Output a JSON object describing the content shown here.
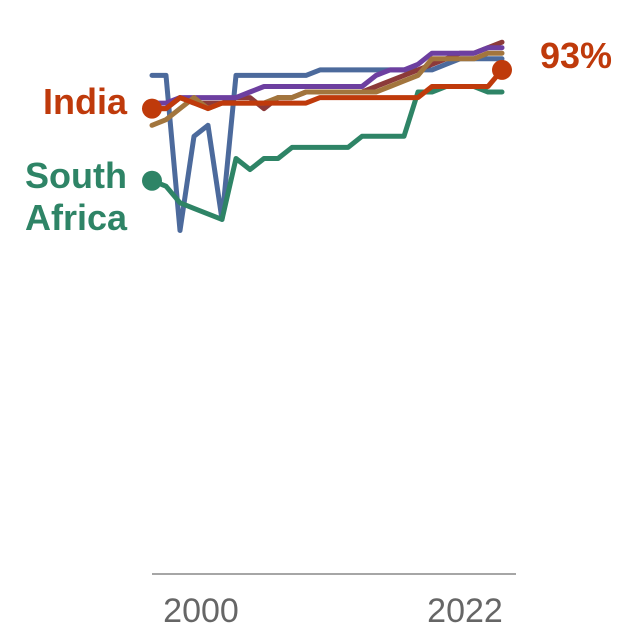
{
  "chart_data": {
    "type": "line",
    "title": "",
    "xlabel": "",
    "ylabel": "",
    "xlim": [
      1997,
      2023
    ],
    "ylim": [
      0,
      100
    ],
    "x_ticks": [
      2000,
      2022
    ],
    "x_tick_labels": [
      "2000",
      "2022"
    ],
    "grid": false,
    "legend": "none",
    "series": [
      {
        "key": "s1",
        "color": "#4c6a9c",
        "values": [
          [
            1997,
            90
          ],
          [
            1998,
            90
          ],
          [
            1999,
            62
          ],
          [
            2000,
            79
          ],
          [
            2001,
            81
          ],
          [
            2002,
            64
          ],
          [
            2003,
            90
          ],
          [
            2004,
            90
          ],
          [
            2005,
            90
          ],
          [
            2006,
            90
          ],
          [
            2007,
            90
          ],
          [
            2008,
            90
          ],
          [
            2009,
            91
          ],
          [
            2010,
            91
          ],
          [
            2011,
            91
          ],
          [
            2012,
            91
          ],
          [
            2013,
            91
          ],
          [
            2014,
            91
          ],
          [
            2015,
            91
          ],
          [
            2016,
            91
          ],
          [
            2017,
            91
          ],
          [
            2018,
            92
          ],
          [
            2019,
            93
          ],
          [
            2020,
            93
          ],
          [
            2021,
            93
          ],
          [
            2022,
            93
          ]
        ]
      },
      {
        "key": "s2",
        "color": "#8c3a3a",
        "values": [
          [
            1997,
            84
          ],
          [
            1998,
            84
          ],
          [
            1999,
            86
          ],
          [
            2000,
            85
          ],
          [
            2001,
            85
          ],
          [
            2002,
            85
          ],
          [
            2003,
            86
          ],
          [
            2004,
            86
          ],
          [
            2005,
            84
          ],
          [
            2006,
            86
          ],
          [
            2007,
            86
          ],
          [
            2008,
            87
          ],
          [
            2009,
            87
          ],
          [
            2010,
            87
          ],
          [
            2011,
            87
          ],
          [
            2012,
            87
          ],
          [
            2013,
            88
          ],
          [
            2014,
            89
          ],
          [
            2015,
            90
          ],
          [
            2016,
            91
          ],
          [
            2017,
            92
          ],
          [
            2018,
            93
          ],
          [
            2019,
            94
          ],
          [
            2020,
            94
          ],
          [
            2021,
            95
          ],
          [
            2022,
            96
          ]
        ]
      },
      {
        "key": "s3",
        "color": "#6d3fa0",
        "values": [
          [
            1997,
            85
          ],
          [
            1998,
            85
          ],
          [
            1999,
            86
          ],
          [
            2000,
            86
          ],
          [
            2001,
            86
          ],
          [
            2002,
            86
          ],
          [
            2003,
            86
          ],
          [
            2004,
            87
          ],
          [
            2005,
            88
          ],
          [
            2006,
            88
          ],
          [
            2007,
            88
          ],
          [
            2008,
            88
          ],
          [
            2009,
            88
          ],
          [
            2010,
            88
          ],
          [
            2011,
            88
          ],
          [
            2012,
            88
          ],
          [
            2013,
            90
          ],
          [
            2014,
            91
          ],
          [
            2015,
            91
          ],
          [
            2016,
            92
          ],
          [
            2017,
            94
          ],
          [
            2018,
            94
          ],
          [
            2019,
            94
          ],
          [
            2020,
            94
          ],
          [
            2021,
            95
          ],
          [
            2022,
            95
          ]
        ]
      },
      {
        "key": "s4",
        "color": "#a2753d",
        "values": [
          [
            1997,
            81
          ],
          [
            1998,
            82
          ],
          [
            1999,
            84
          ],
          [
            2000,
            86
          ],
          [
            2001,
            84
          ],
          [
            2002,
            85
          ],
          [
            2003,
            85
          ],
          [
            2004,
            85
          ],
          [
            2005,
            85
          ],
          [
            2006,
            86
          ],
          [
            2007,
            86
          ],
          [
            2008,
            87
          ],
          [
            2009,
            87
          ],
          [
            2010,
            87
          ],
          [
            2011,
            87
          ],
          [
            2012,
            87
          ],
          [
            2013,
            87
          ],
          [
            2014,
            88
          ],
          [
            2015,
            89
          ],
          [
            2016,
            90
          ],
          [
            2017,
            93
          ],
          [
            2018,
            93
          ],
          [
            2019,
            93
          ],
          [
            2020,
            93
          ],
          [
            2021,
            94
          ],
          [
            2022,
            94
          ]
        ]
      },
      {
        "key": "sa",
        "name": "South Africa",
        "color": "#2e8466",
        "values": [
          [
            1997,
            71
          ],
          [
            1998,
            70
          ],
          [
            1999,
            67
          ],
          [
            2000,
            66
          ],
          [
            2001,
            65
          ],
          [
            2002,
            64
          ],
          [
            2003,
            75
          ],
          [
            2004,
            73
          ],
          [
            2005,
            75
          ],
          [
            2006,
            75
          ],
          [
            2007,
            77
          ],
          [
            2008,
            77
          ],
          [
            2009,
            77
          ],
          [
            2010,
            77
          ],
          [
            2011,
            77
          ],
          [
            2012,
            79
          ],
          [
            2013,
            79
          ],
          [
            2014,
            79
          ],
          [
            2015,
            79
          ],
          [
            2016,
            87
          ],
          [
            2017,
            87
          ],
          [
            2018,
            88
          ],
          [
            2019,
            88
          ],
          [
            2020,
            88
          ],
          [
            2021,
            87
          ],
          [
            2022,
            87
          ]
        ]
      },
      {
        "key": "india",
        "name": "India",
        "color": "#bf3a0b",
        "values": [
          [
            1997,
            84
          ],
          [
            1998,
            84
          ],
          [
            1999,
            86
          ],
          [
            2000,
            85
          ],
          [
            2001,
            84
          ],
          [
            2002,
            85
          ],
          [
            2003,
            85
          ],
          [
            2004,
            85
          ],
          [
            2005,
            85
          ],
          [
            2006,
            85
          ],
          [
            2007,
            85
          ],
          [
            2008,
            85
          ],
          [
            2009,
            86
          ],
          [
            2010,
            86
          ],
          [
            2011,
            86
          ],
          [
            2012,
            86
          ],
          [
            2013,
            86
          ],
          [
            2014,
            86
          ],
          [
            2015,
            86
          ],
          [
            2016,
            86
          ],
          [
            2017,
            88
          ],
          [
            2018,
            88
          ],
          [
            2019,
            88
          ],
          [
            2020,
            88
          ],
          [
            2021,
            88
          ],
          [
            2022,
            91
          ]
        ]
      }
    ],
    "labels": {
      "india": "India",
      "south_africa_line1": "South",
      "south_africa_line2": "Africa",
      "end_value": "93%"
    }
  }
}
